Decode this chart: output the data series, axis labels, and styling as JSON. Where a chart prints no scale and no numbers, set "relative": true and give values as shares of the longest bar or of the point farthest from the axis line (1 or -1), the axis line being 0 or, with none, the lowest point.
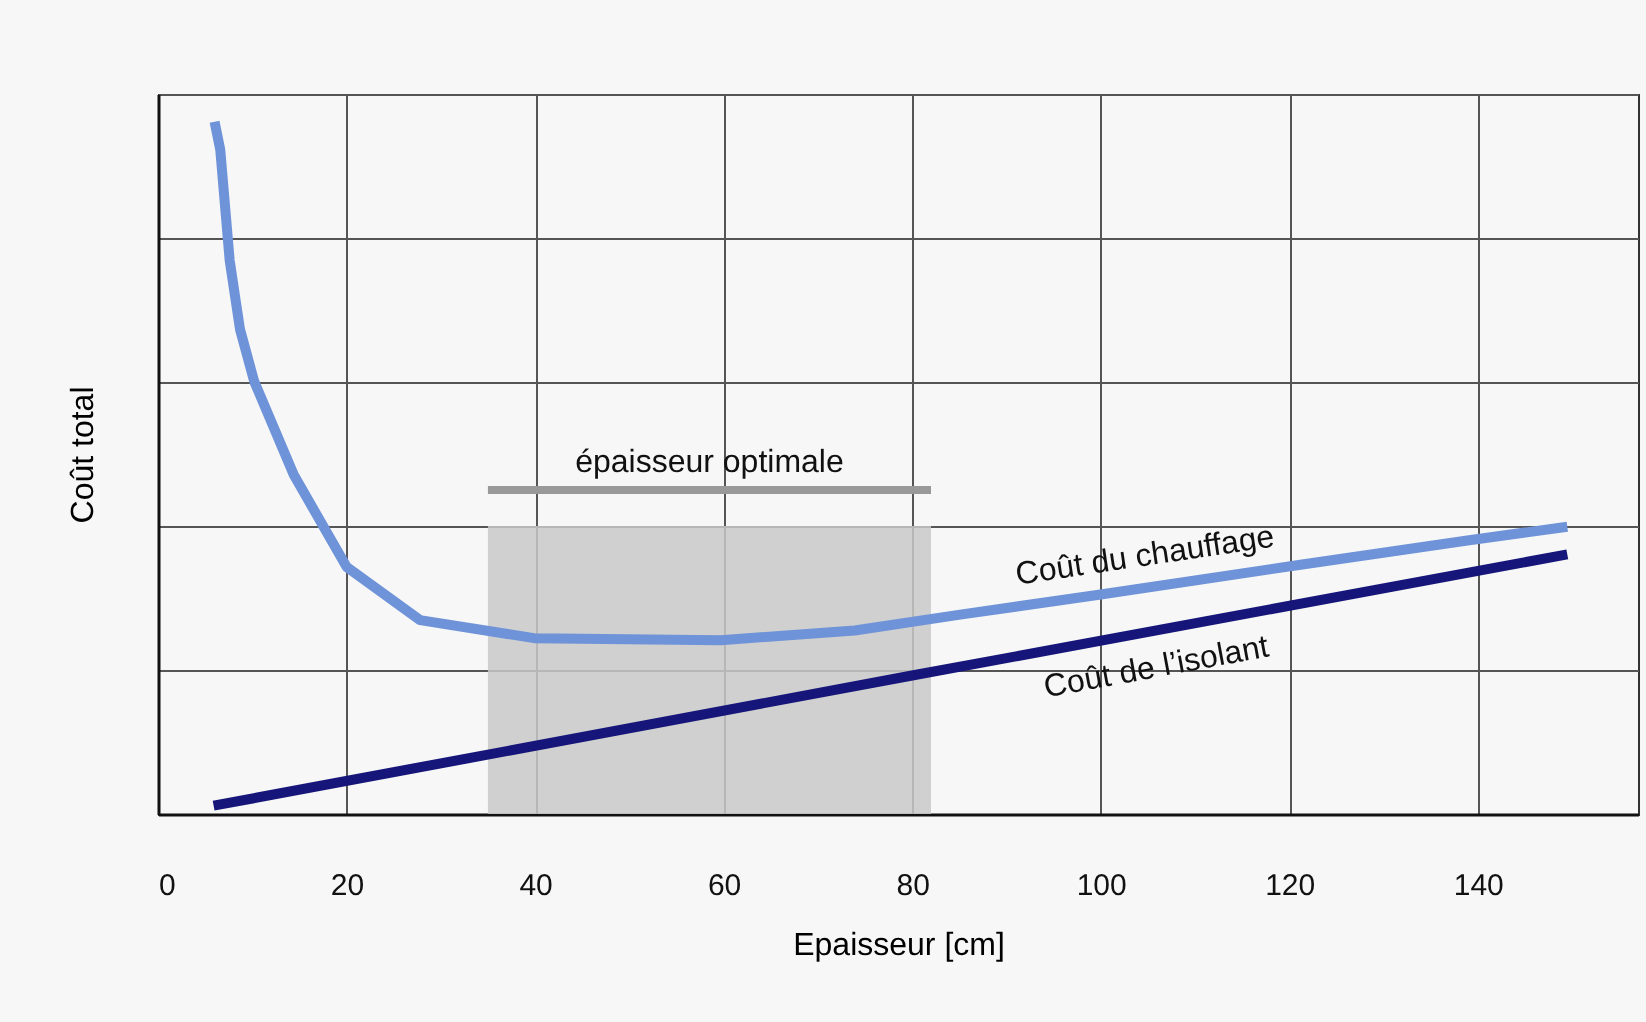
{
  "chart_data": {
    "type": "line",
    "relative": true,
    "xlabel": "Epaisseur  [cm]",
    "ylabel": "Coût total",
    "xlim": [
      0,
      157
    ],
    "xticks": [
      0,
      20,
      40,
      60,
      80,
      100,
      120,
      140
    ],
    "grid": true,
    "tick_labels": "x",
    "line_style": "solid",
    "marker": "none",
    "series": [
      {
        "name": "Coût du chauffage",
        "color": "#6f93d8",
        "x": [
          6,
          6.6,
          7.6,
          8.7,
          10.2,
          14.4,
          20,
          27.8,
          39.9,
          59.7,
          73.9,
          85.1,
          100,
          121.2,
          138.9,
          149.5
        ],
        "values": [
          1.0,
          0.96,
          0.8,
          0.7,
          0.625,
          0.49,
          0.357,
          0.28,
          0.254,
          0.251,
          0.265,
          0.288,
          0.317,
          0.36,
          0.395,
          0.415
        ]
      },
      {
        "name": "Coût de l’isolant",
        "color": "#16167a",
        "x": [
          5.9,
          80,
          149.5
        ],
        "values": [
          0.012,
          0.2,
          0.375
        ]
      }
    ],
    "bands": [
      {
        "axis": "x",
        "from": 35,
        "to": 82,
        "label": "épaisseur optimale",
        "color": "#c9c9c9"
      }
    ]
  }
}
